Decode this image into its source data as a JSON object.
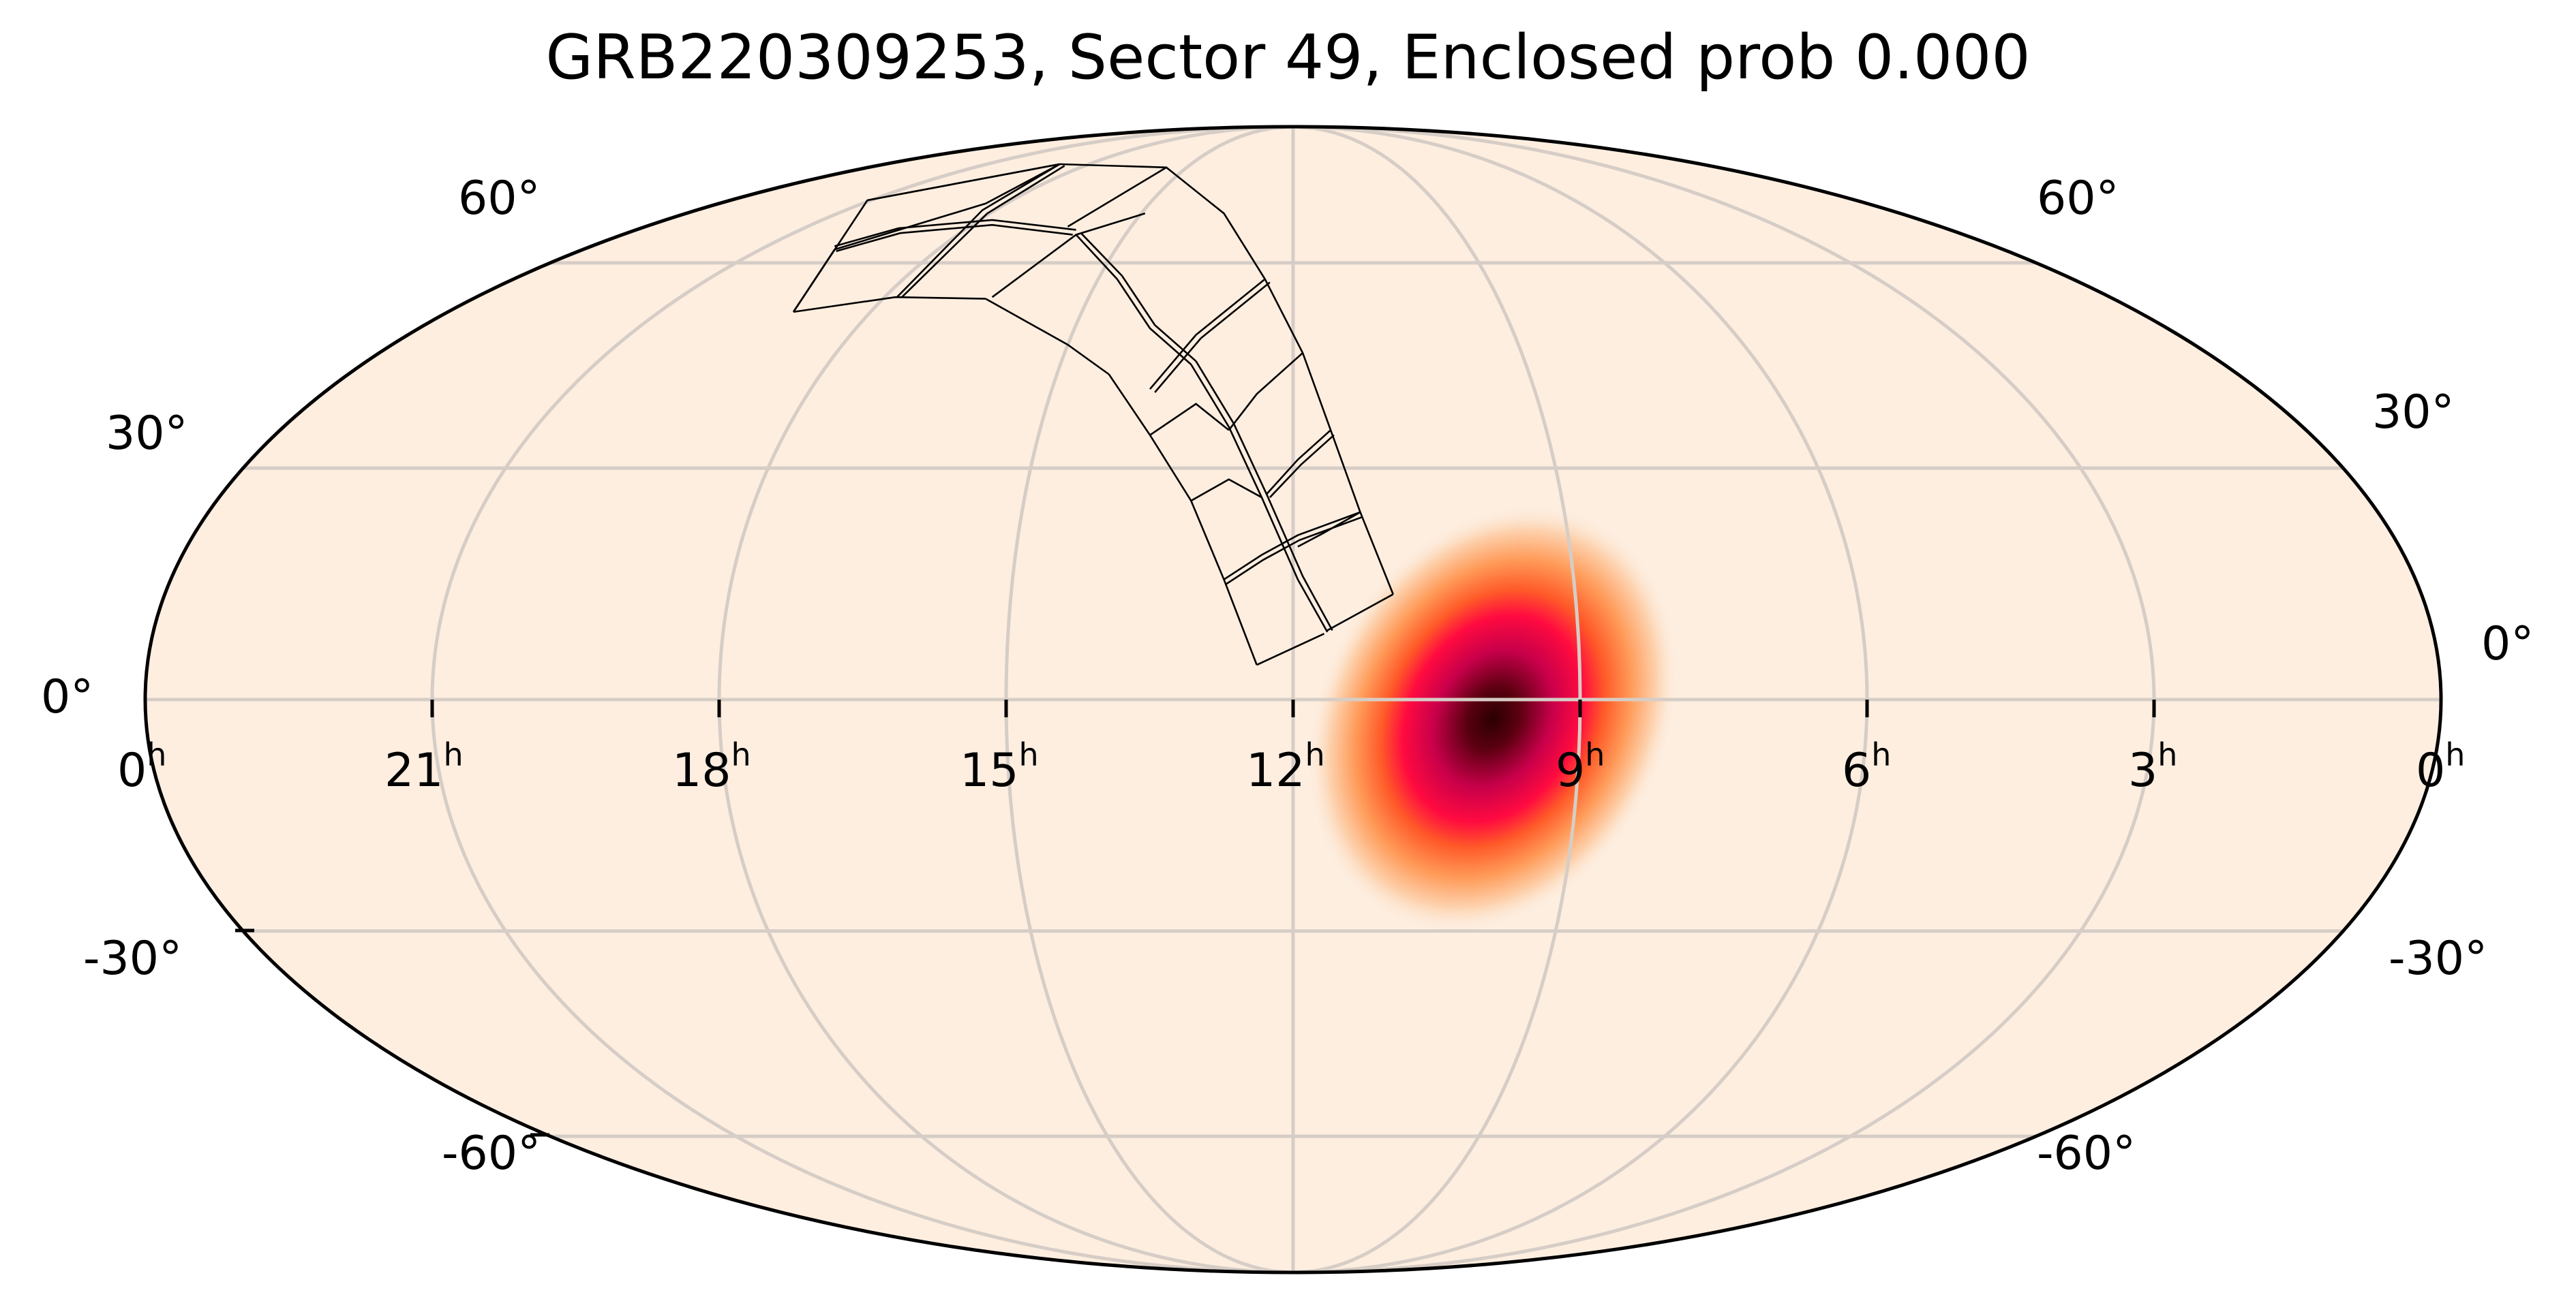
{
  "chart_data": {
    "type": "heatmap",
    "projection": "mollweide",
    "title": "GRB220309253, Sector 49, Enclosed prob 0.000",
    "xlabel": "",
    "ylabel": "",
    "ra_tick_labels": [
      "0h",
      "21h",
      "18h",
      "15h",
      "12h",
      "9h",
      "6h",
      "3h",
      "0h"
    ],
    "ra_tick_values_hours": [
      24,
      21,
      18,
      15,
      12,
      9,
      6,
      3,
      0
    ],
    "dec_tick_labels": [
      "60°",
      "30°",
      "0°",
      "-30°",
      "-60°"
    ],
    "dec_tick_values_deg": [
      60,
      30,
      0,
      -30,
      -60
    ],
    "grid": true,
    "background_color": "#fdeee0",
    "probability_peak": {
      "ra_hours": 9.7,
      "dec_deg": -2,
      "color_scale": "hot_r-like (cream → orange → red → dark maroon)"
    },
    "footprint": {
      "description": "TESS Sector 49 camera footprint, 4 cameras x 4 CCDs",
      "approx_ra_range_hours": [
        11.5,
        19
      ],
      "approx_dec_range_deg": [
        5,
        62
      ]
    },
    "enclosed_probability": 0.0
  },
  "figure": {
    "title": "GRB220309253, Sector 49, Enclosed prob 0.000",
    "ra_labels": [
      {
        "num": "0",
        "sup": "h"
      },
      {
        "num": "21",
        "sup": "h"
      },
      {
        "num": "18",
        "sup": "h"
      },
      {
        "num": "15",
        "sup": "h"
      },
      {
        "num": "12",
        "sup": "h"
      },
      {
        "num": "9",
        "sup": "h"
      },
      {
        "num": "6",
        "sup": "h"
      },
      {
        "num": "3",
        "sup": "h"
      },
      {
        "num": "0",
        "sup": "h"
      }
    ],
    "dec_labels_left": [
      "60°",
      "30°",
      "0°",
      "-30°",
      "-60°"
    ],
    "dec_labels_right": [
      "60°",
      "30°",
      "0°",
      "-30°",
      "-60°"
    ],
    "colors": {
      "map_fill": "#fdeee0",
      "grid": "#d6cdc6",
      "outline": "#000000",
      "blob_core": "#3a0000",
      "blob_mid": "#e8004a",
      "blob_outer": "#ff6a2a",
      "blob_edge": "#fdc89a"
    }
  }
}
